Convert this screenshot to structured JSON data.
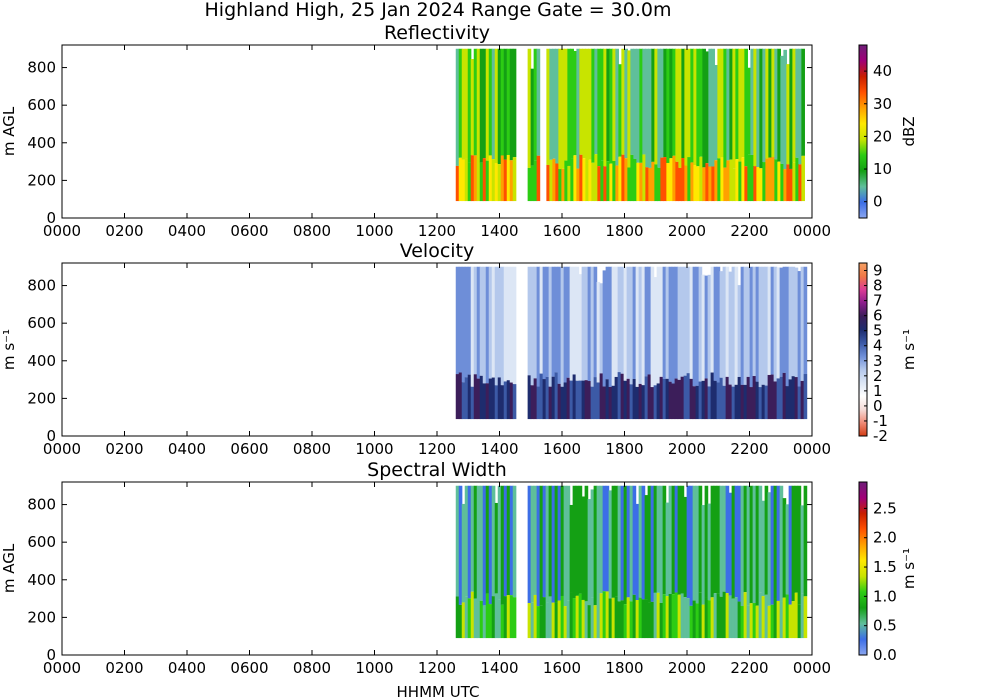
{
  "suptitle": "Highland High, 25 Jan 2024 Range Gate = 30.0m",
  "xlabel": "HHMM UTC",
  "chart_data": [
    {
      "type": "heatmap",
      "title": "Reflectivity",
      "ylabel": "m AGL",
      "colorbar_label": "dBZ",
      "xlim": [
        0,
        24
      ],
      "ylim": [
        0,
        920
      ],
      "x_ticks": [
        "0000",
        "0200",
        "0400",
        "0600",
        "0800",
        "1000",
        "1200",
        "1400",
        "1600",
        "1800",
        "2000",
        "2200",
        "0000"
      ],
      "y_ticks": [
        "0",
        "200",
        "400",
        "600",
        "800"
      ],
      "colorbar_range": [
        -5,
        48
      ],
      "colorbar_ticks": [
        "0",
        "10",
        "20",
        "30",
        "40"
      ],
      "colormap": [
        "#8aa6f0",
        "#3c6ee6",
        "#5fbf9a",
        "#14a014",
        "#2ccc14",
        "#c8e400",
        "#ffe800",
        "#ffa000",
        "#ff5000",
        "#c81e00",
        "#a00078",
        "#6e1e78"
      ],
      "data_coverage": [
        [
          12.6,
          14.45
        ],
        [
          14.9,
          15.2
        ],
        [
          15.5,
          23.75
        ]
      ],
      "height_range": [
        90,
        900
      ]
    },
    {
      "type": "heatmap",
      "title": "Velocity",
      "ylabel": "m s⁻¹",
      "colorbar_label": "m s⁻¹",
      "xlim": [
        0,
        24
      ],
      "ylim": [
        0,
        920
      ],
      "x_ticks": [
        "0000",
        "0200",
        "0400",
        "0600",
        "0800",
        "1000",
        "1200",
        "1400",
        "1600",
        "1800",
        "2000",
        "2200",
        "0000"
      ],
      "y_ticks": [
        "0",
        "200",
        "400",
        "600",
        "800"
      ],
      "colorbar_range": [
        -2,
        9.5
      ],
      "colorbar_ticks": [
        "9",
        "8",
        "7",
        "6",
        "5",
        "4",
        "3",
        "2",
        "1",
        "0",
        "-1",
        "-2"
      ],
      "colormap": [
        "#d23c14",
        "#f08c78",
        "#f5dcd8",
        "#ffffff",
        "#dce6f5",
        "#b4c8ec",
        "#6e8ed8",
        "#3c5aa6",
        "#1e2c6e",
        "#3c1e5a",
        "#8c1e8c",
        "#dc3c96",
        "#f07846",
        "#f5a064"
      ],
      "data_coverage": [
        [
          12.6,
          14.45
        ],
        [
          14.9,
          23.75
        ]
      ],
      "height_range": [
        90,
        900
      ]
    },
    {
      "type": "heatmap",
      "title": "Spectral Width",
      "ylabel": "m AGL",
      "colorbar_label": "m s⁻¹",
      "xlim": [
        0,
        24
      ],
      "ylim": [
        0,
        920
      ],
      "x_ticks": [
        "0000",
        "0200",
        "0400",
        "0600",
        "0800",
        "1000",
        "1200",
        "1400",
        "1600",
        "1800",
        "2000",
        "2200",
        "0000"
      ],
      "y_ticks": [
        "0",
        "200",
        "400",
        "600",
        "800"
      ],
      "colorbar_range": [
        0,
        2.95
      ],
      "colorbar_ticks": [
        "0.0",
        "0.5",
        "1.0",
        "1.5",
        "2.0",
        "2.5"
      ],
      "colormap": [
        "#8aa6f0",
        "#3c6ee6",
        "#5fbf9a",
        "#14a014",
        "#2ccc14",
        "#c8e400",
        "#ffe800",
        "#ffa000",
        "#ff5000",
        "#c81e00",
        "#a00078",
        "#6e1e78"
      ],
      "data_coverage": [
        [
          12.6,
          14.45
        ],
        [
          14.9,
          23.75
        ]
      ],
      "height_range": [
        90,
        900
      ]
    }
  ]
}
